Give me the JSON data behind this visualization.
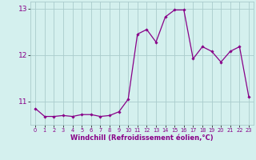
{
  "x": [
    0,
    1,
    2,
    3,
    4,
    5,
    6,
    7,
    8,
    9,
    10,
    11,
    12,
    13,
    14,
    15,
    16,
    17,
    18,
    19,
    20,
    21,
    22,
    23
  ],
  "y": [
    10.85,
    10.68,
    10.68,
    10.7,
    10.68,
    10.72,
    10.72,
    10.68,
    10.7,
    10.78,
    11.05,
    12.45,
    12.55,
    12.28,
    12.82,
    12.97,
    12.97,
    11.92,
    12.18,
    12.08,
    11.85,
    12.08,
    12.18,
    11.1
  ],
  "line_color": "#880088",
  "marker": "D",
  "marker_size": 1.8,
  "bg_color": "#d4f0ee",
  "grid_color": "#aacccc",
  "xlabel": "Windchill (Refroidissement éolien,°C)",
  "xlabel_color": "#880088",
  "tick_color": "#880088",
  "ylim": [
    10.5,
    13.15
  ],
  "yticks": [
    11,
    12,
    13
  ],
  "xlim": [
    -0.5,
    23.5
  ],
  "xticks": [
    0,
    1,
    2,
    3,
    4,
    5,
    6,
    7,
    8,
    9,
    10,
    11,
    12,
    13,
    14,
    15,
    16,
    17,
    18,
    19,
    20,
    21,
    22,
    23
  ]
}
